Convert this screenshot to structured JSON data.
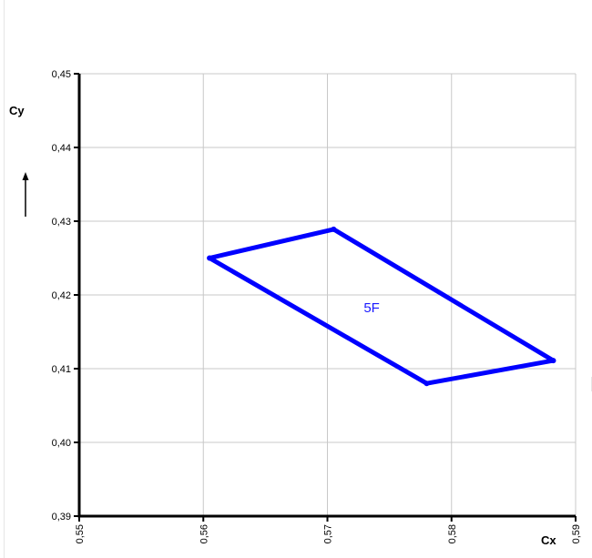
{
  "chart_data": {
    "type": "line",
    "title": "",
    "xlabel": "Cx",
    "ylabel": "Cy",
    "xlim": [
      0.55,
      0.59
    ],
    "ylim": [
      0.39,
      0.45
    ],
    "xticks": [
      "0,55",
      "0,56",
      "0,57",
      "0,58",
      "0,59"
    ],
    "yticks": [
      "0,39",
      "0,40",
      "0,41",
      "0,42",
      "0,43",
      "0,44",
      "0,45"
    ],
    "grid": true,
    "series": [
      {
        "name": "5F",
        "color": "#0000ff",
        "closed": true,
        "points": [
          {
            "x": 0.5605,
            "y": 0.425
          },
          {
            "x": 0.5705,
            "y": 0.4289
          },
          {
            "x": 0.5882,
            "y": 0.4111
          },
          {
            "x": 0.578,
            "y": 0.408
          }
        ]
      }
    ],
    "annotations": {
      "ylabel_arrow": "up-arrow"
    }
  }
}
